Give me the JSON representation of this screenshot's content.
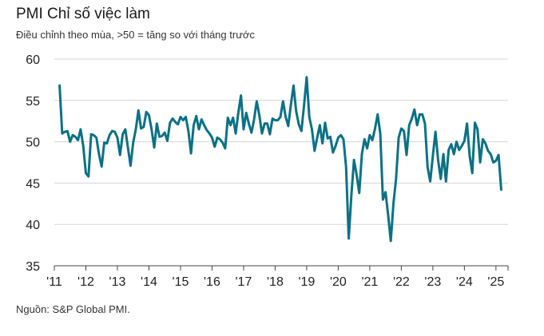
{
  "chart_data": {
    "type": "line",
    "title": "PMI Chỉ số việc làm",
    "subtitle": "Điều chỉnh theo mùa, >50 = tăng so với tháng trước",
    "source": "Nguồn: S&P Global PMI.",
    "ylim": [
      35,
      60
    ],
    "yticks": [
      35,
      40,
      45,
      50,
      55,
      60
    ],
    "xtick_labels": [
      "'11",
      "'12",
      "'13",
      "'14",
      "'15",
      "'16",
      "'17",
      "'18",
      "'19",
      "'20",
      "'21",
      "'22",
      "'23",
      "'24",
      "'25"
    ],
    "x_start": "2011-03",
    "x_end": "2025-05",
    "grid": true,
    "line_color": "#0a7187",
    "series": [
      {
        "values": [
          56.8,
          51.0,
          51.2,
          51.3,
          50.0,
          50.8,
          50.6,
          50.2,
          51.5,
          49.5,
          46.2,
          45.8,
          50.9,
          50.8,
          50.5,
          48.5,
          47.0,
          49.9,
          49.8,
          50.8,
          51.3,
          51.2,
          50.5,
          48.4,
          50.9,
          51.5,
          49.3,
          47.1,
          49.9,
          51.5,
          53.8,
          51.6,
          51.8,
          53.6,
          53.2,
          51.5,
          49.3,
          52.2,
          50.6,
          50.7,
          51.1,
          50.1,
          52.3,
          52.8,
          52.4,
          52.1,
          53.0,
          52.6,
          53.0,
          51.3,
          48.6,
          52.0,
          53.1,
          51.5,
          52.7,
          52.0,
          51.4,
          51.0,
          50.5,
          49.4,
          50.5,
          50.3,
          49.9,
          49.2,
          52.9,
          52.0,
          52.9,
          51.0,
          53.5,
          55.6,
          51.5,
          53.5,
          52.2,
          51.1,
          52.7,
          54.9,
          53.2,
          51.0,
          52.2,
          52.2,
          50.9,
          52.8,
          52.6,
          52.6,
          53.0,
          54.9,
          53.0,
          51.9,
          54.5,
          56.8,
          53.7,
          52.1,
          51.3,
          54.4,
          57.8,
          53.0,
          51.5,
          48.9,
          50.5,
          52.0,
          49.8,
          52.3,
          50.4,
          50.6,
          48.7,
          49.5,
          50.5,
          50.8,
          50.3,
          46.9,
          38.3,
          43.5,
          47.8,
          46.0,
          43.8,
          48.5,
          50.3,
          49.2,
          50.8,
          50.2,
          51.6,
          53.3,
          51.0,
          43.0,
          43.9,
          41.1,
          38.0,
          42.5,
          45.5,
          50.5,
          51.6,
          51.3,
          48.4,
          52.0,
          52.8,
          53.9,
          52.0,
          53.3,
          53.3,
          52.2,
          46.9,
          45.2,
          48.3,
          51.2,
          47.8,
          45.5,
          48.5,
          45.2,
          49.0,
          49.7,
          48.5,
          50.0,
          49.0,
          49.5,
          50.1,
          52.2,
          48.3,
          46.2,
          52.3,
          51.5,
          47.5,
          50.3,
          49.8,
          48.9,
          48.5,
          47.5,
          47.7,
          48.4,
          44.2
        ]
      }
    ]
  }
}
